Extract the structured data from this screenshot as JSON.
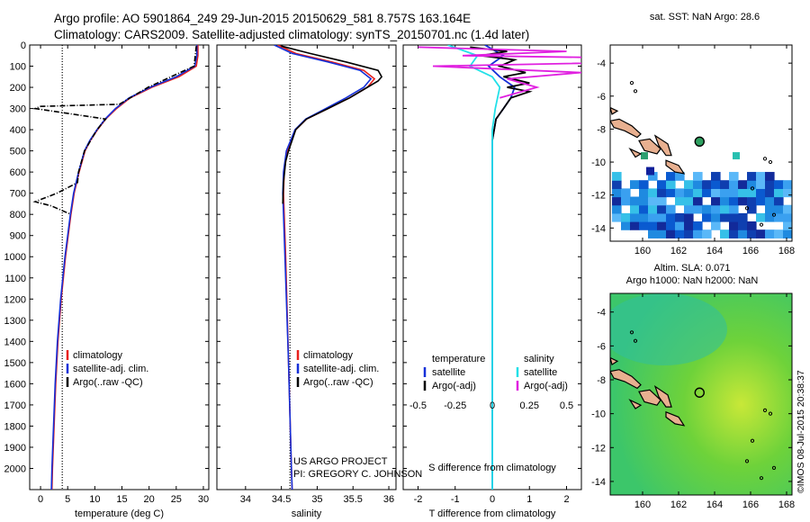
{
  "header": {
    "line1": "Argo profile: AO 5901864_249 29-Jun-2015 20150629_581 8.757S 163.164E",
    "line2": "Climatology: CARS2009. Satellite-adjusted climatology: synTS_20150701.nc (1.4d later)"
  },
  "credits": {
    "project": "US ARGO PROJECT",
    "pi": "PI: GREGORY C. JOHNSON",
    "stamp": "©IMOS 08-Jul-2015 20:38:37"
  },
  "colors": {
    "climatology": "#e8201c",
    "satellite_adj": "#1530d8",
    "argo": "#000000",
    "satellite_salinity": "#22e0e8",
    "argo_salinity_diff": "#e020e0"
  },
  "chart_data": [
    {
      "type": "line",
      "id": "temperature-profile",
      "xlabel": "temperature (deg C)",
      "xlim": [
        -2,
        31
      ],
      "ylim": [
        2100,
        0
      ],
      "xticks": [
        0,
        5,
        10,
        15,
        20,
        25,
        30
      ],
      "yticks": [
        0,
        100,
        200,
        300,
        400,
        500,
        600,
        700,
        800,
        900,
        1000,
        1100,
        1200,
        1300,
        1400,
        1500,
        1600,
        1700,
        1800,
        1900,
        2000
      ],
      "reference_line_x": 4,
      "legend": [
        "climatology",
        "satellite-adj. clim.",
        "Argo(..raw -QC)"
      ],
      "series": [
        {
          "name": "climatology",
          "depth": [
            0,
            50,
            100,
            150,
            200,
            250,
            300,
            350,
            400,
            450,
            500,
            600,
            700,
            800,
            900,
            1000,
            1200,
            1400,
            1600,
            1800,
            2000,
            2100
          ],
          "values": [
            29,
            29,
            28.7,
            25.5,
            20.5,
            16.5,
            14,
            12,
            10.5,
            9.2,
            8.2,
            7.1,
            6.2,
            5.6,
            5.1,
            4.6,
            3.8,
            3.2,
            2.8,
            2.5,
            2.2,
            2.1
          ]
        },
        {
          "name": "satellite-adj. clim.",
          "depth": [
            0,
            50,
            100,
            150,
            200,
            250,
            300,
            350,
            400,
            450,
            500,
            600,
            700,
            800,
            900,
            1000,
            1200,
            1400,
            1600,
            1800,
            2000,
            2100
          ],
          "values": [
            28.8,
            28.8,
            28.4,
            25,
            20.2,
            16.3,
            13.8,
            11.9,
            10.4,
            9.1,
            8.1,
            7,
            6.1,
            5.5,
            5,
            4.5,
            3.7,
            3.1,
            2.7,
            2.4,
            2.1,
            2
          ]
        },
        {
          "name": "Argo(..raw -QC)",
          "depth": [
            5,
            100,
            200,
            280,
            290,
            300,
            350,
            400,
            500,
            600,
            650,
            700,
            740,
            760,
            800
          ],
          "values": [
            28.7,
            28.3,
            19.8,
            14.5,
            0,
            -1,
            12,
            10.4,
            8.1,
            7,
            6.8,
            3,
            -1,
            2,
            5.6
          ]
        }
      ]
    },
    {
      "type": "line",
      "id": "salinity-profile",
      "xlabel": "salinity",
      "xlim": [
        33.6,
        36.1
      ],
      "ylim": [
        2100,
        0
      ],
      "xticks": [
        34,
        34.5,
        35,
        35.5,
        36
      ],
      "reference_line_x": 34.62,
      "legend": [
        "climatology",
        "satellite-adj. clim.",
        "Argo(..raw -QC)"
      ],
      "series": [
        {
          "name": "climatology",
          "depth": [
            0,
            40,
            80,
            120,
            160,
            200,
            250,
            300,
            350,
            400,
            500,
            600,
            700,
            800,
            1000,
            1500,
            2000,
            2100
          ],
          "values": [
            34.45,
            34.7,
            35.2,
            35.65,
            35.8,
            35.7,
            35.45,
            35.15,
            34.85,
            34.7,
            34.58,
            34.54,
            34.53,
            34.54,
            34.56,
            34.6,
            34.64,
            34.65
          ]
        },
        {
          "name": "satellite-adj. clim.",
          "depth": [
            0,
            40,
            80,
            120,
            160,
            200,
            250,
            300,
            350,
            400,
            500,
            600,
            700,
            800,
            1000,
            1500,
            2000,
            2100
          ],
          "values": [
            34.4,
            34.65,
            35.15,
            35.6,
            35.75,
            35.65,
            35.4,
            35.12,
            34.84,
            34.69,
            34.57,
            34.53,
            34.52,
            34.53,
            34.55,
            34.6,
            34.64,
            34.65
          ]
        },
        {
          "name": "Argo(..raw -QC)",
          "depth": [
            5,
            40,
            80,
            120,
            150,
            170,
            200,
            250,
            300,
            350,
            400,
            500,
            550,
            650,
            750
          ],
          "values": [
            34.5,
            34.9,
            35.4,
            35.85,
            35.9,
            35.85,
            35.7,
            35.45,
            35.15,
            34.85,
            34.7,
            34.6,
            34.56,
            34.53,
            34.52
          ]
        }
      ]
    },
    {
      "type": "line",
      "id": "difference-profile",
      "xlabel_top": "S difference from climatology",
      "xlabel_bottom": "T difference from climatology",
      "xlim": [
        -2.4,
        2.4
      ],
      "ylim": [
        2100,
        0
      ],
      "xticks_top": [
        -0.5,
        -0.25,
        0,
        0.25,
        0.5
      ],
      "xticks_bottom": [
        -2,
        -1,
        0,
        1,
        2
      ],
      "legend_temperature": [
        "satellite",
        "Argo(-adj)"
      ],
      "legend_salinity": [
        "satellite",
        "Argo(-adj)"
      ],
      "legend_headers": [
        "temperature",
        "salinity"
      ],
      "series": [
        {
          "name": "temperature satellite",
          "depth": [
            0,
            50,
            100,
            150,
            200,
            250,
            300,
            350,
            400,
            450,
            500,
            700,
            1000,
            2100
          ],
          "values": [
            -0.2,
            0.3,
            -0.1,
            0.2,
            0.6,
            0.5,
            0.3,
            0.1,
            0.05,
            0,
            0,
            0,
            0,
            0
          ]
        },
        {
          "name": "temperature Argo(-adj)",
          "depth": [
            10,
            30,
            50,
            70,
            100,
            130,
            150,
            180,
            200,
            220,
            250,
            300,
            350,
            400,
            450
          ],
          "values": [
            -0.6,
            0.4,
            -0.3,
            0.6,
            0.2,
            0.9,
            0.3,
            1,
            0.4,
            1,
            0.5,
            0.3,
            0.1,
            0.05,
            0
          ]
        },
        {
          "name": "salinity satellite",
          "depth": [
            0,
            50,
            100,
            150,
            200,
            300,
            400,
            500,
            1000,
            2100
          ],
          "values": [
            -0.3,
            -0.1,
            -0.15,
            0,
            0.05,
            0.02,
            0,
            0,
            0,
            0
          ]
        },
        {
          "name": "salinity Argo(-adj)",
          "depth": [
            10,
            30,
            50,
            70,
            100,
            130,
            160,
            200,
            250
          ],
          "values": [
            -0.5,
            0.5,
            -0.2,
            1.8,
            -0.4,
            0.6,
            0.1,
            0.3,
            0.05
          ]
        }
      ]
    }
  ],
  "maps": [
    {
      "id": "sst-map",
      "title": "sat. SST: NaN Argo: 28.6",
      "xticks": [
        160,
        162,
        164,
        166,
        168
      ],
      "yticks": [
        -4,
        -6,
        -8,
        -10,
        -12,
        -14
      ],
      "xlim": [
        158.2,
        168.3
      ],
      "ylim": [
        -14.8,
        -2.9
      ],
      "argo_lon": 163.164,
      "argo_lat": -8.757
    },
    {
      "id": "sla-map",
      "title_line1": "Altim. SLA: 0.071",
      "title_line2": "Argo h1000: NaN h2000: NaN",
      "xticks": [
        160,
        162,
        164,
        166,
        168
      ],
      "yticks": [
        -4,
        -6,
        -8,
        -10,
        -12,
        -14
      ],
      "xlim": [
        158.2,
        168.3
      ],
      "ylim": [
        -14.8,
        -2.9
      ],
      "argo_lon": 163.164,
      "argo_lat": -8.757
    }
  ]
}
